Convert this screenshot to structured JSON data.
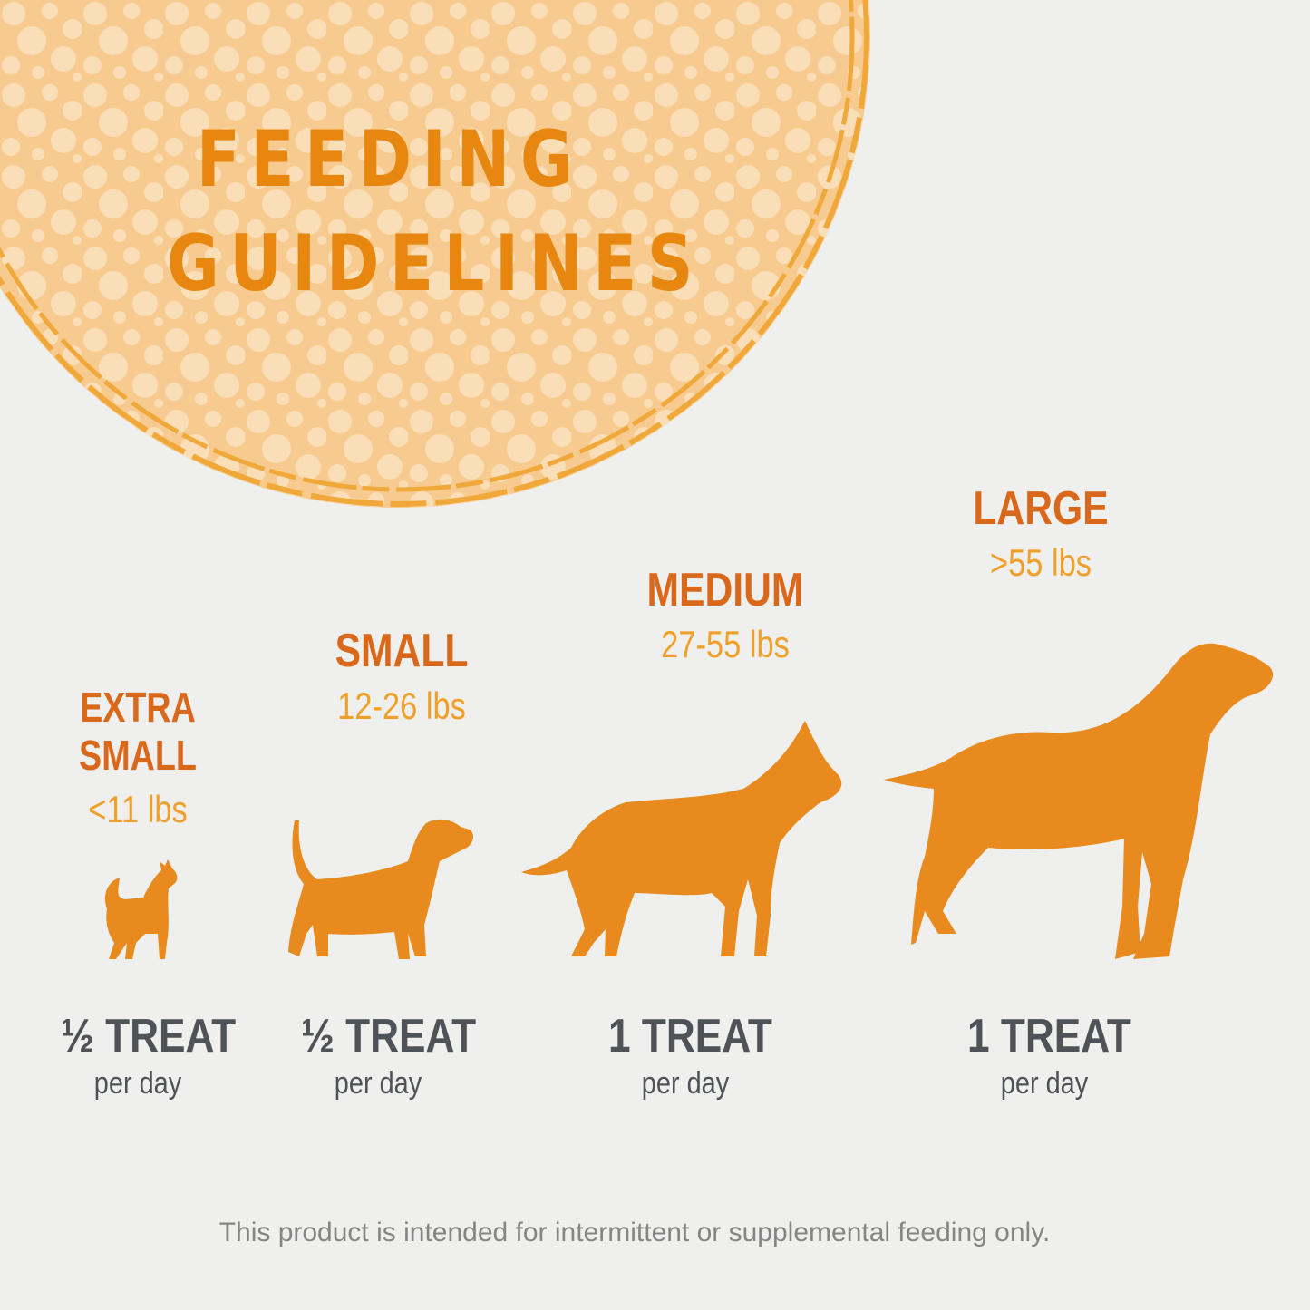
{
  "title": {
    "line1": "FEEDING",
    "line2": "GUIDELINES"
  },
  "colors": {
    "accent": "#e8870f",
    "category": "#d9681b",
    "weight": "#f0a028",
    "amount": "#4f5256",
    "footnote": "#858585",
    "circle_fill": "#f6c98a",
    "background": "#efefed"
  },
  "sizes": [
    {
      "category_line1": "EXTRA",
      "category_line2": "SMALL",
      "weight": "<11 lbs",
      "amount": "½ TREAT",
      "frequency": "per day",
      "icon": "chihuahua-silhouette-icon"
    },
    {
      "category_line1": "SMALL",
      "weight": "12-26 lbs",
      "amount": "½ TREAT",
      "frequency": "per day",
      "icon": "terrier-silhouette-icon"
    },
    {
      "category_line1": "MEDIUM",
      "weight": "27-55 lbs",
      "amount": "1 TREAT",
      "frequency": "per day",
      "icon": "shepherd-silhouette-icon"
    },
    {
      "category_line1": "LARGE",
      "weight": ">55 lbs",
      "amount": "1 TREAT",
      "frequency": "per day",
      "icon": "pointer-silhouette-icon"
    }
  ],
  "footnote": "This product is intended for intermittent or supplemental feeding only."
}
